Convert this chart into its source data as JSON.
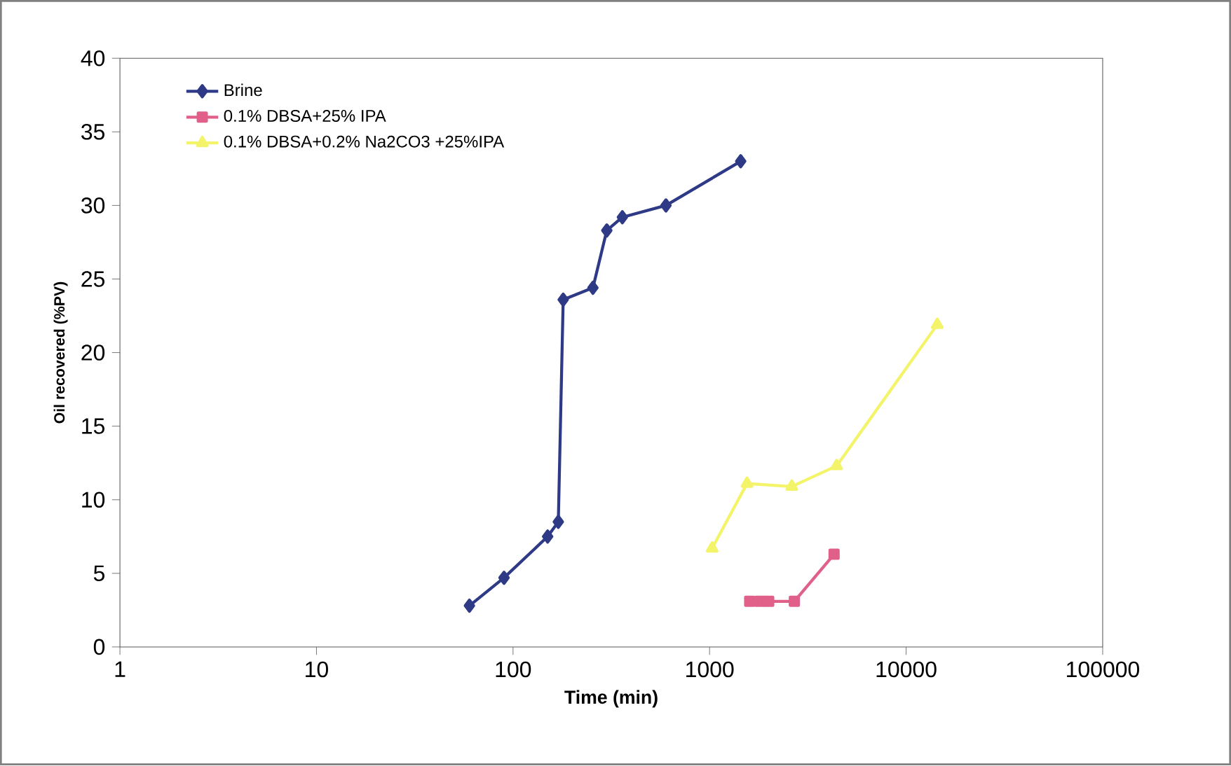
{
  "chart_data": {
    "type": "line",
    "xlabel": "Time (min)",
    "ylabel": "Oil recovered (%PV)",
    "log": "x",
    "grid": false,
    "legend": "top left",
    "xlim": [
      1,
      100000
    ],
    "xticks": [
      1,
      10,
      100,
      1000,
      10000,
      100000
    ],
    "ylim": [
      0,
      40
    ],
    "yticks": [
      0,
      5,
      10,
      15,
      20,
      25,
      30,
      35,
      40
    ],
    "series": [
      {
        "name": "Brine",
        "color": "#2e3a86",
        "marker": "diamond",
        "x": [
          60,
          90,
          150,
          170,
          180,
          255,
          300,
          360,
          600,
          1440
        ],
        "values": [
          2.8,
          4.7,
          7.5,
          8.5,
          23.6,
          24.4,
          28.3,
          29.2,
          30.0,
          33.0
        ]
      },
      {
        "name": "0.1% DBSA+25% IPA",
        "color": "#e0608a",
        "marker": "square",
        "x": [
          1600,
          1800,
          2000,
          2700,
          4300
        ],
        "values": [
          3.1,
          3.1,
          3.1,
          3.1,
          6.3
        ]
      },
      {
        "name": "0.1% DBSA+0.2% Na2CO3 +25%IPA",
        "color": "#f4f46a",
        "marker": "triangle",
        "x": [
          1030,
          1550,
          2620,
          4430,
          14400
        ],
        "values": [
          6.7,
          11.1,
          10.9,
          12.3,
          21.9
        ]
      }
    ]
  }
}
